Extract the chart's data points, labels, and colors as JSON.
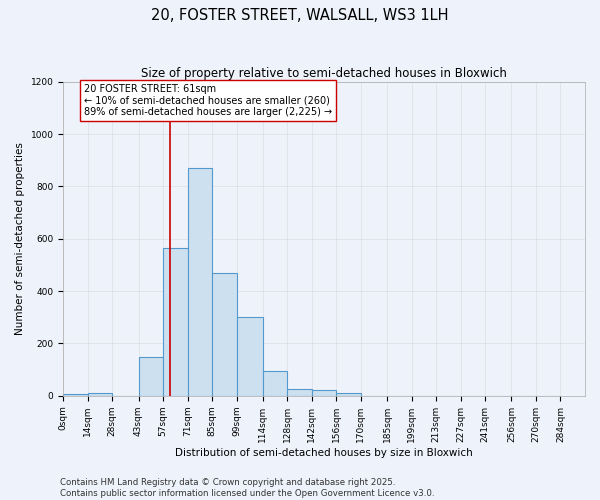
{
  "title": "20, FOSTER STREET, WALSALL, WS3 1LH",
  "subtitle": "Size of property relative to semi-detached houses in Bloxwich",
  "xlabel": "Distribution of semi-detached houses by size in Bloxwich",
  "ylabel": "Number of semi-detached properties",
  "bin_edges": [
    0,
    14,
    28,
    43,
    57,
    71,
    85,
    99,
    114,
    128,
    142,
    156,
    170,
    185,
    199,
    213,
    227,
    241,
    256,
    270,
    284
  ],
  "bin_labels": [
    "0sqm",
    "14sqm",
    "28sqm",
    "43sqm",
    "57sqm",
    "71sqm",
    "85sqm",
    "99sqm",
    "114sqm",
    "128sqm",
    "142sqm",
    "156sqm",
    "170sqm",
    "185sqm",
    "199sqm",
    "213sqm",
    "227sqm",
    "241sqm",
    "256sqm",
    "270sqm",
    "284sqm"
  ],
  "bar_heights": [
    8,
    12,
    0,
    150,
    565,
    870,
    470,
    300,
    95,
    25,
    22,
    10,
    0,
    0,
    0,
    0,
    0,
    0,
    0,
    0
  ],
  "bar_color": "#cce0f0",
  "bar_edge_color": "#5599cc",
  "bar_edge_width": 0.8,
  "red_line_x": 61,
  "red_line_color": "#cc0000",
  "ylim": [
    0,
    1200
  ],
  "yticks": [
    0,
    200,
    400,
    600,
    800,
    1000,
    1200
  ],
  "annotation_text": "20 FOSTER STREET: 61sqm\n← 10% of semi-detached houses are smaller (260)\n89% of semi-detached houses are larger (2,225) →",
  "annotation_box_color": "#ffffff",
  "annotation_box_edge_color": "#cc0000",
  "annotation_fontsize": 7,
  "background_color": "#eef2fa",
  "grid_color": "#cccccc",
  "grid_alpha": 0.5,
  "title_fontsize": 10.5,
  "subtitle_fontsize": 8.5,
  "footer_text": "Contains HM Land Registry data © Crown copyright and database right 2025.\nContains public sector information licensed under the Open Government Licence v3.0.",
  "footer_fontsize": 6.2,
  "tick_fontsize": 6.5,
  "ylabel_fontsize": 7.5,
  "xlabel_fontsize": 7.5
}
